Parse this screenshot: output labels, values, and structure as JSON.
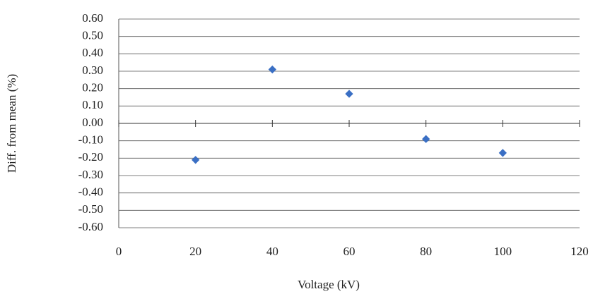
{
  "chart_data": {
    "type": "scatter",
    "x_label": "Voltage (kV)",
    "y_label": "Diff. from mean (%)",
    "x": [
      20,
      40,
      60,
      80,
      100
    ],
    "series": [
      {
        "color": "#3a6fc4",
        "values": [
          -0.21,
          0.31,
          0.17,
          -0.09,
          -0.17
        ]
      }
    ],
    "xlim": [
      0,
      120
    ],
    "xticks": [
      0,
      20,
      40,
      60,
      80,
      100,
      120
    ],
    "ylim": [
      -0.6,
      0.6
    ],
    "yticks": [
      {
        "value": -0.6,
        "label": "-0.60"
      },
      {
        "value": -0.5,
        "label": "-0.50"
      },
      {
        "value": -0.4,
        "label": "-0.40"
      },
      {
        "value": -0.3,
        "label": "-0.30"
      },
      {
        "value": -0.2,
        "label": "-0.20"
      },
      {
        "value": -0.1,
        "label": "-0.10"
      },
      {
        "value": 0,
        "label": "0.00"
      },
      {
        "value": 0.1,
        "label": "0.10"
      },
      {
        "value": 0.2,
        "label": "0.20"
      },
      {
        "value": 0.3,
        "label": "0.30"
      },
      {
        "value": 0.4,
        "label": "0.40"
      },
      {
        "value": 0.5,
        "label": "0.50"
      },
      {
        "value": 0.6,
        "label": "0.60"
      }
    ],
    "grid": true
  }
}
